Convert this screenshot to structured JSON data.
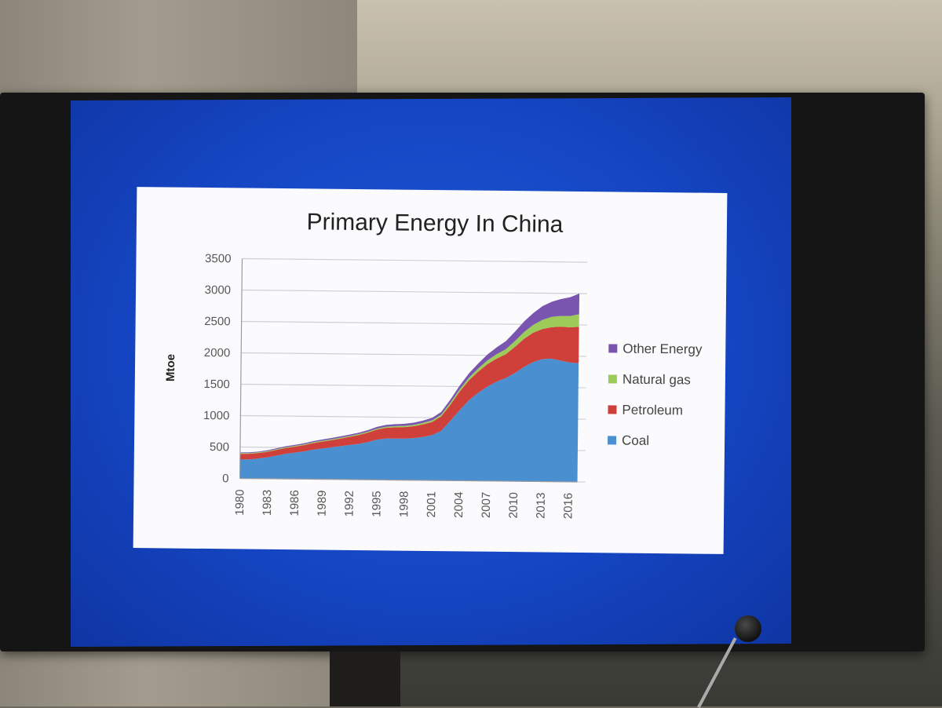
{
  "chart_data": {
    "type": "area",
    "stacked": true,
    "title": "Primary Energy In China",
    "ylabel": "Mtoe",
    "xlabel": "",
    "ylim": [
      0,
      3500
    ],
    "yticks": [
      0,
      500,
      1000,
      1500,
      2000,
      2500,
      3000,
      3500
    ],
    "xticks": [
      "1980",
      "1983",
      "1986",
      "1989",
      "1992",
      "1995",
      "1998",
      "2001",
      "2004",
      "2007",
      "2010",
      "2013",
      "2016"
    ],
    "grid": true,
    "legend_position": "right",
    "x": [
      1980,
      1981,
      1982,
      1983,
      1984,
      1985,
      1986,
      1987,
      1988,
      1989,
      1990,
      1991,
      1992,
      1993,
      1994,
      1995,
      1996,
      1997,
      1998,
      1999,
      2000,
      2001,
      2002,
      2003,
      2004,
      2005,
      2006,
      2007,
      2008,
      2009,
      2010,
      2011,
      2012,
      2013,
      2014,
      2015,
      2016,
      2017
    ],
    "series": [
      {
        "name": "Coal",
        "color": "#4a8fd0",
        "values": [
          300,
          305,
          320,
          340,
          370,
          400,
          420,
          440,
          470,
          490,
          510,
          530,
          550,
          570,
          600,
          640,
          660,
          660,
          660,
          670,
          690,
          720,
          790,
          950,
          1120,
          1280,
          1400,
          1500,
          1580,
          1640,
          1720,
          1820,
          1900,
          1950,
          1960,
          1930,
          1900,
          1890
        ]
      },
      {
        "name": "Petroleum",
        "color": "#d0403a",
        "values": [
          90,
          88,
          87,
          88,
          90,
          92,
          95,
          100,
          105,
          110,
          115,
          120,
          130,
          140,
          150,
          160,
          170,
          180,
          185,
          190,
          200,
          210,
          230,
          260,
          300,
          320,
          340,
          360,
          370,
          380,
          420,
          450,
          470,
          480,
          500,
          540,
          560,
          580
        ]
      },
      {
        "name": "Natural gas",
        "color": "#9ccb5a",
        "values": [
          13,
          12,
          11,
          11,
          11,
          12,
          12,
          12,
          13,
          14,
          14,
          15,
          15,
          15,
          16,
          17,
          18,
          19,
          20,
          22,
          24,
          26,
          28,
          32,
          36,
          42,
          50,
          60,
          70,
          80,
          95,
          110,
          125,
          145,
          165,
          170,
          180,
          200
        ]
      },
      {
        "name": "Other Energy",
        "color": "#7a55b0",
        "values": [
          10,
          11,
          12,
          13,
          14,
          15,
          16,
          17,
          18,
          19,
          20,
          21,
          22,
          23,
          25,
          27,
          29,
          30,
          32,
          34,
          36,
          40,
          44,
          50,
          60,
          70,
          80,
          95,
          110,
          130,
          150,
          170,
          190,
          220,
          240,
          270,
          300,
          330
        ]
      }
    ]
  }
}
